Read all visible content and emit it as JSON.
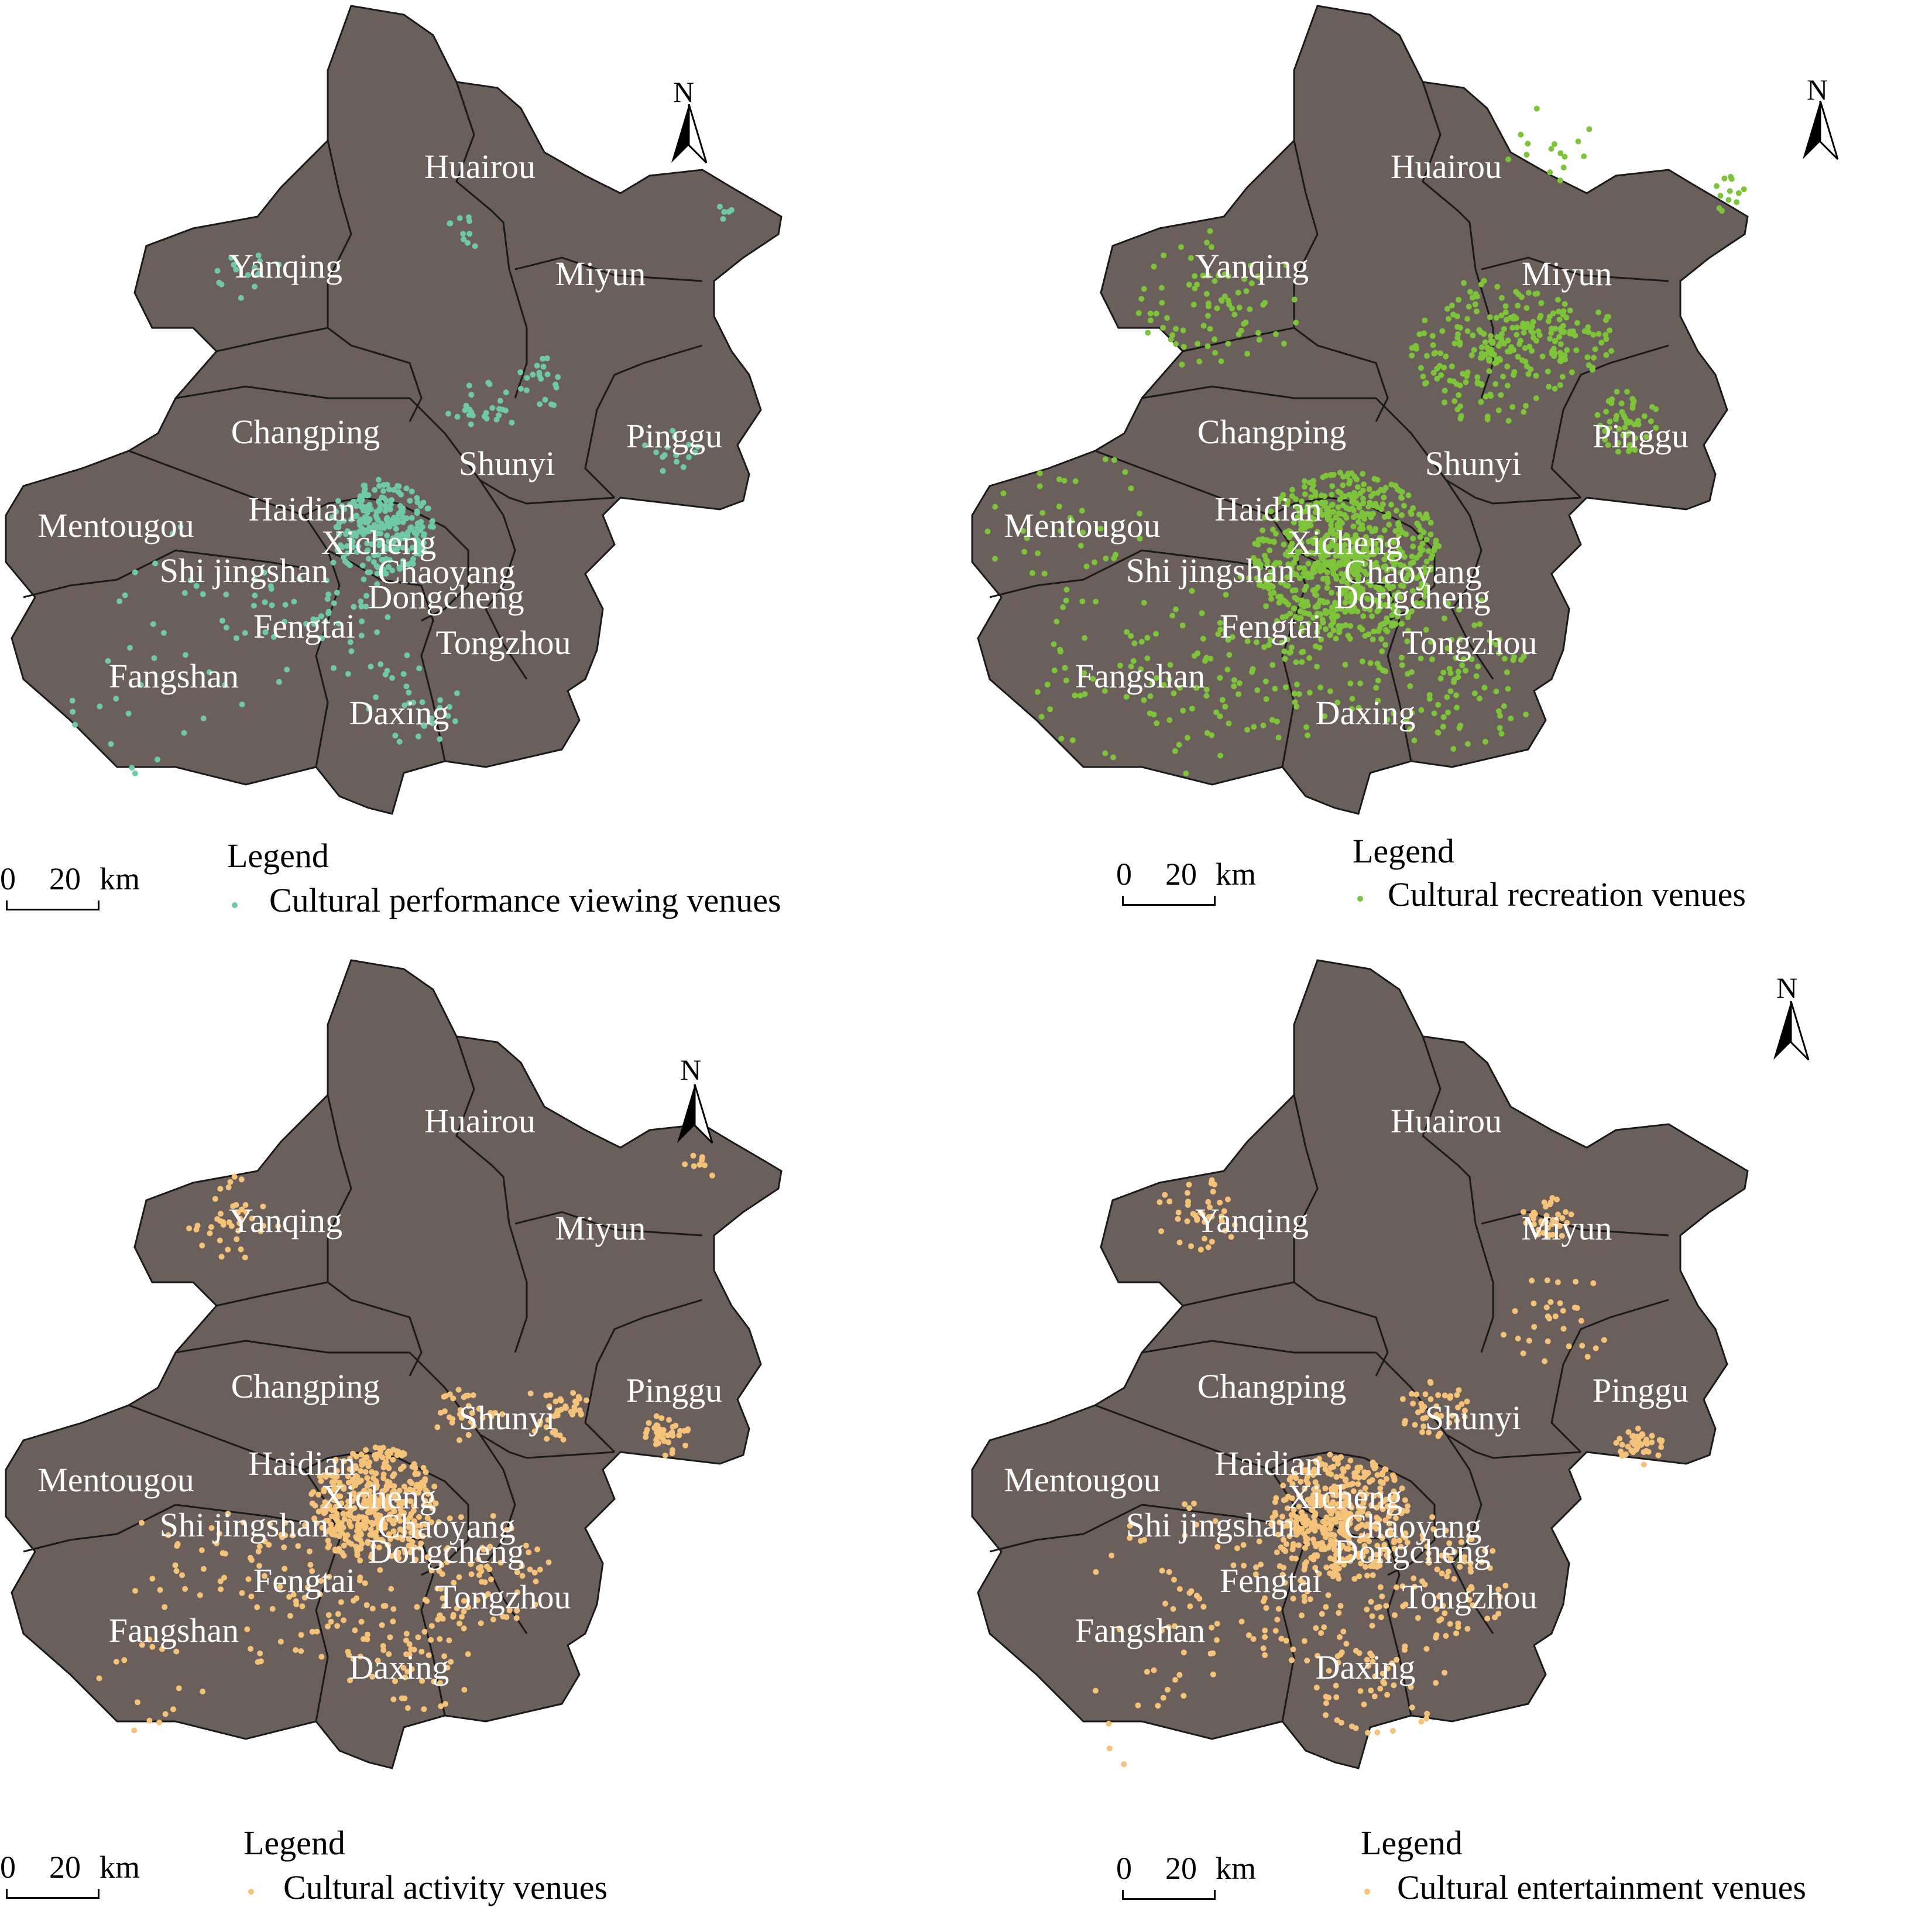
{
  "north_letter": "N",
  "legend_title": "Legend",
  "scale": {
    "zero": "0",
    "twenty": "20",
    "unit": "km"
  },
  "districts": [
    "Huairou",
    "Yanqing",
    "Miyun",
    "Changping",
    "Pinggu",
    "Shunyi",
    "Mentougou",
    "Haidian",
    "Xicheng",
    "Shi jingshan",
    "Chaoyang",
    "Dongcheng",
    "Fengtai",
    "Tongzhou",
    "Fangshan",
    "Daxing"
  ],
  "panels": [
    {
      "legend_label": "Cultural performance viewing venues",
      "dot_color": "#6fc9a6"
    },
    {
      "legend_label": "Cultural recreation venues",
      "dot_color": "#7ec43b"
    },
    {
      "legend_label": "Cultural activity venues",
      "dot_color": "#f5c27a"
    },
    {
      "legend_label": "Cultural entertainment venues",
      "dot_color": "#f5c27a"
    }
  ],
  "colors": {
    "land": "#6b5f5b",
    "border": "#1a1a1a"
  }
}
